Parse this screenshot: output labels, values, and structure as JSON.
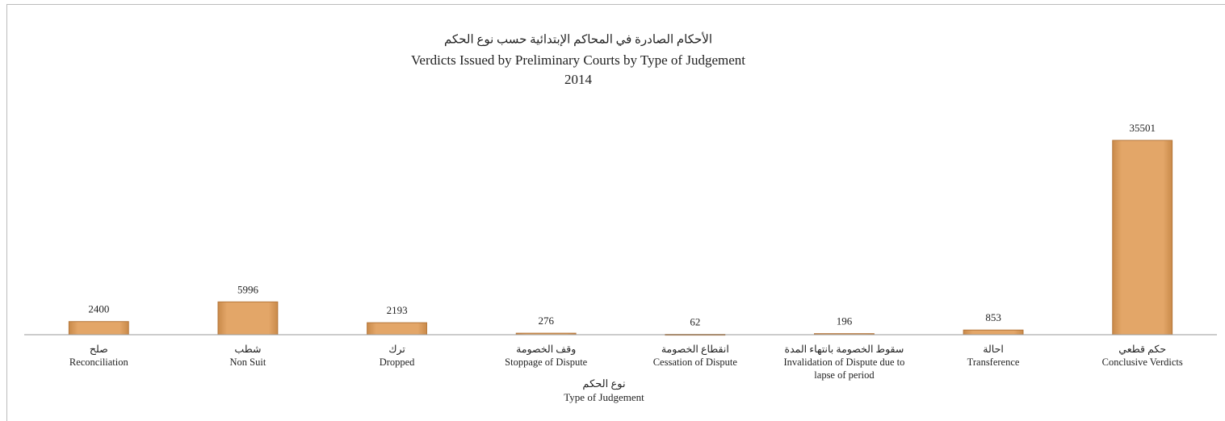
{
  "chart_data": {
    "type": "bar",
    "title": [
      "الأحكام الصادرة في المحاكم الإبتدائية حسب نوع الحكم",
      "Verdicts Issued by Preliminary Courts by Type of  Judgement",
      "2014"
    ],
    "categories": [
      [
        "صلح",
        "Reconciliation"
      ],
      [
        "شطب",
        "Non Suit"
      ],
      [
        "ترك",
        "Dropped"
      ],
      [
        "وقف الخصومة",
        "Stoppage of Dispute"
      ],
      [
        "انقطاع الخصومة",
        "Cessation of Dispute"
      ],
      [
        "سقوط الخصومة بانتهاء المدة",
        "Invalidation of Dispute due to lapse of period"
      ],
      [
        "احالة",
        "Transference"
      ],
      [
        "حكم قطعي",
        "Conclusive Verdicts"
      ]
    ],
    "values": [
      2400,
      5996,
      2193,
      276,
      62,
      196,
      853,
      35501
    ],
    "color": "#e3a668",
    "xlabel": [
      "نوع الحكم",
      "Type of Judgement"
    ],
    "ylim": [
      0,
      40000
    ]
  }
}
